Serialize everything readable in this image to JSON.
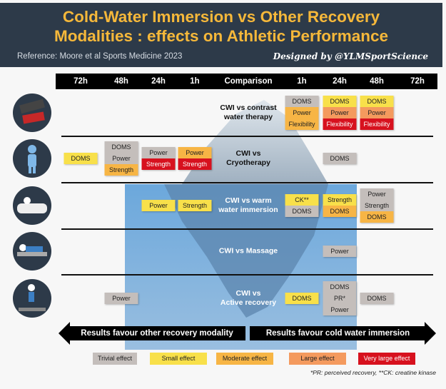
{
  "header": {
    "title_line1": "Cold-Water Immersion vs Other Recovery",
    "title_line2": "Modalities : effects on Athletic Performance",
    "reference": "Reference: Moore et al Sports Medicine 2023",
    "designer": "Designed by @YLMSportScience"
  },
  "columns": [
    "72h",
    "48h",
    "24h",
    "1h",
    "Comparison",
    "1h",
    "24h",
    "48h",
    "72h"
  ],
  "colors": {
    "trivial": "#c4bebb",
    "small": "#f8e04a",
    "moderate": "#f7b545",
    "large": "#f49a5e",
    "vlarge": "#d7111e"
  },
  "rows": [
    {
      "icon": "cold-hot-sign-icon",
      "comparison": [
        "CWI vs contrast",
        "water therapy"
      ],
      "cells": [
        {
          "col": 5,
          "items": [
            {
              "label": "DOMS",
              "effect": "trivial"
            },
            {
              "label": "Power",
              "effect": "moderate"
            },
            {
              "label": "Flexibility",
              "effect": "moderate"
            }
          ]
        },
        {
          "col": 6,
          "items": [
            {
              "label": "DOMS",
              "effect": "small"
            },
            {
              "label": "Power",
              "effect": "large"
            },
            {
              "label": "Flexibility",
              "effect": "vlarge"
            }
          ]
        },
        {
          "col": 7,
          "items": [
            {
              "label": "DOMS",
              "effect": "small"
            },
            {
              "label": "Power",
              "effect": "large"
            },
            {
              "label": "Flexibility",
              "effect": "vlarge"
            }
          ]
        }
      ]
    },
    {
      "icon": "cold-figure-icon",
      "comparison": [
        "CWI vs",
        "Cryotherapy"
      ],
      "cells": [
        {
          "col": 0,
          "items": [
            {
              "label": "DOMS",
              "effect": "small"
            }
          ]
        },
        {
          "col": 1,
          "items": [
            {
              "label": "DOMS",
              "effect": "trivial"
            },
            {
              "label": "Power",
              "effect": "trivial"
            },
            {
              "label": "Strength",
              "effect": "moderate"
            }
          ]
        },
        {
          "col": 2,
          "items": [
            {
              "label": "Power",
              "effect": "trivial"
            },
            {
              "label": "Strength",
              "effect": "vlarge"
            }
          ]
        },
        {
          "col": 3,
          "items": [
            {
              "label": "Power",
              "effect": "moderate"
            },
            {
              "label": "Strength",
              "effect": "vlarge"
            }
          ]
        },
        {
          "col": 6,
          "items": [
            {
              "label": "DOMS",
              "effect": "trivial"
            }
          ]
        }
      ]
    },
    {
      "icon": "bathtub-icon",
      "comparison": [
        "CWI vs warm",
        "water immersion"
      ],
      "cells": [
        {
          "col": 2,
          "items": [
            {
              "label": "Power",
              "effect": "small"
            }
          ]
        },
        {
          "col": 3,
          "items": [
            {
              "label": "Strength",
              "effect": "small"
            }
          ]
        },
        {
          "col": 5,
          "items": [
            {
              "label": "CK**",
              "effect": "small"
            },
            {
              "label": "DOMS",
              "effect": "trivial"
            }
          ]
        },
        {
          "col": 6,
          "items": [
            {
              "label": "Strength",
              "effect": "small"
            },
            {
              "label": "DOMS",
              "effect": "moderate"
            }
          ]
        },
        {
          "col": 7,
          "items": [
            {
              "label": "Power",
              "effect": "trivial"
            },
            {
              "label": "Strength",
              "effect": "trivial"
            },
            {
              "label": "DOMS",
              "effect": "moderate"
            }
          ]
        }
      ]
    },
    {
      "icon": "massage-table-icon",
      "comparison": [
        "CWI vs Massage"
      ],
      "cells": [
        {
          "col": 6,
          "items": [
            {
              "label": "Power",
              "effect": "trivial"
            }
          ]
        }
      ]
    },
    {
      "icon": "treadmill-icon",
      "comparison": [
        "CWI vs",
        "Active recovery"
      ],
      "cells": [
        {
          "col": 1,
          "items": [
            {
              "label": "Power",
              "effect": "trivial"
            }
          ]
        },
        {
          "col": 5,
          "items": [
            {
              "label": "DOMS",
              "effect": "small"
            }
          ]
        },
        {
          "col": 6,
          "items": [
            {
              "label": "DOMS",
              "effect": "trivial"
            },
            {
              "label": "PR*",
              "effect": "trivial"
            },
            {
              "label": "Power",
              "effect": "trivial"
            }
          ]
        },
        {
          "col": 7,
          "items": [
            {
              "label": "DOMS",
              "effect": "trivial"
            }
          ]
        }
      ]
    }
  ],
  "arrows": {
    "left": "Results favour other recovery modality",
    "right": "Results favour cold water immersion"
  },
  "legend": [
    {
      "label": "Trivial effect",
      "effect": "trivial"
    },
    {
      "label": "Small effect",
      "effect": "small"
    },
    {
      "label": "Moderate effect",
      "effect": "moderate"
    },
    {
      "label": "Large effect",
      "effect": "large"
    },
    {
      "label": "Very large effect",
      "effect": "vlarge"
    }
  ],
  "footnote": "*PR: perceived recovery, **CK: creatine kinase"
}
